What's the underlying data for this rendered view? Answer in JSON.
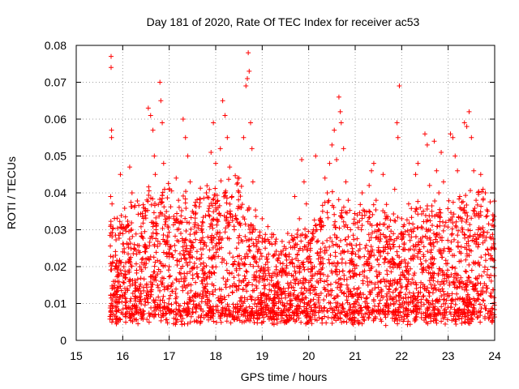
{
  "chart_data": {
    "type": "scatter",
    "title": "Day 181 of 2020, Rate Of TEC Index for receiver ac53",
    "xlabel": "GPS time / hours",
    "ylabel": "ROTI / TECUs",
    "xlim": [
      15,
      24
    ],
    "ylim": [
      0,
      0.08
    ],
    "xticks": [
      "15",
      "16",
      "17",
      "18",
      "19",
      "20",
      "21",
      "22",
      "23",
      "24"
    ],
    "yticks": [
      "0",
      "0.01",
      "0.02",
      "0.03",
      "0.04",
      "0.05",
      "0.06",
      "0.07",
      "0.08"
    ],
    "grid": true,
    "marker": "plus",
    "color": "#ff0000",
    "series": [
      {
        "name": "ROTI",
        "points": [
          [
            15.75,
            0.077
          ],
          [
            15.75,
            0.074
          ],
          [
            15.76,
            0.057
          ],
          [
            15.76,
            0.055
          ],
          [
            15.74,
            0.039
          ],
          [
            15.77,
            0.037
          ],
          [
            15.78,
            0.021
          ],
          [
            15.8,
            0.016
          ],
          [
            15.82,
            0.012
          ],
          [
            15.85,
            0.009
          ],
          [
            15.88,
            0.006
          ],
          [
            15.9,
            0.014
          ],
          [
            15.95,
            0.045
          ],
          [
            16.0,
            0.024
          ],
          [
            16.05,
            0.018
          ],
          [
            16.1,
            0.031
          ],
          [
            16.15,
            0.047
          ],
          [
            16.2,
            0.04
          ],
          [
            16.25,
            0.026
          ],
          [
            16.3,
            0.019
          ],
          [
            16.35,
            0.014
          ],
          [
            16.4,
            0.029
          ],
          [
            16.45,
            0.036
          ],
          [
            16.5,
            0.022
          ],
          [
            16.55,
            0.063
          ],
          [
            16.6,
            0.061
          ],
          [
            16.65,
            0.057
          ],
          [
            16.68,
            0.05
          ],
          [
            16.7,
            0.045
          ],
          [
            16.72,
            0.031
          ],
          [
            16.75,
            0.018
          ],
          [
            16.8,
            0.07
          ],
          [
            16.82,
            0.065
          ],
          [
            16.85,
            0.059
          ],
          [
            16.88,
            0.048
          ],
          [
            16.9,
            0.041
          ],
          [
            16.95,
            0.027
          ],
          [
            17.0,
            0.02
          ],
          [
            17.05,
            0.015
          ],
          [
            17.1,
            0.033
          ],
          [
            17.15,
            0.044
          ],
          [
            17.2,
            0.038
          ],
          [
            17.25,
            0.029
          ],
          [
            17.3,
            0.06
          ],
          [
            17.35,
            0.055
          ],
          [
            17.4,
            0.05
          ],
          [
            17.45,
            0.043
          ],
          [
            17.5,
            0.035
          ],
          [
            17.55,
            0.012
          ],
          [
            17.6,
            0.005
          ],
          [
            17.65,
            0.022
          ],
          [
            17.7,
            0.031
          ],
          [
            17.75,
            0.026
          ],
          [
            17.8,
            0.04
          ],
          [
            17.85,
            0.034
          ],
          [
            17.9,
            0.051
          ],
          [
            17.95,
            0.059
          ],
          [
            18.0,
            0.048
          ],
          [
            18.05,
            0.036
          ],
          [
            18.1,
            0.052
          ],
          [
            18.15,
            0.065
          ],
          [
            18.2,
            0.061
          ],
          [
            18.25,
            0.055
          ],
          [
            18.3,
            0.047
          ],
          [
            18.35,
            0.039
          ],
          [
            18.4,
            0.03
          ],
          [
            18.45,
            0.025
          ],
          [
            18.5,
            0.044
          ],
          [
            18.55,
            0.036
          ],
          [
            18.6,
            0.055
          ],
          [
            18.65,
            0.069
          ],
          [
            18.68,
            0.071
          ],
          [
            18.7,
            0.078
          ],
          [
            18.72,
            0.073
          ],
          [
            18.75,
            0.059
          ],
          [
            18.78,
            0.052
          ],
          [
            18.8,
            0.043
          ],
          [
            18.85,
            0.03
          ],
          [
            18.9,
            0.024
          ],
          [
            18.95,
            0.019
          ],
          [
            19.0,
            0.033
          ],
          [
            19.05,
            0.014
          ],
          [
            19.1,
            0.022
          ],
          [
            19.15,
            0.011
          ],
          [
            19.2,
            0.017
          ],
          [
            19.25,
            0.008
          ],
          [
            19.3,
            0.02
          ],
          [
            19.35,
            0.015
          ],
          [
            19.4,
            0.024
          ],
          [
            19.45,
            0.013
          ],
          [
            19.5,
            0.018
          ],
          [
            19.55,
            0.029
          ],
          [
            19.6,
            0.012
          ],
          [
            19.65,
            0.021
          ],
          [
            19.7,
            0.039
          ],
          [
            19.75,
            0.026
          ],
          [
            19.8,
            0.033
          ],
          [
            19.85,
            0.049
          ],
          [
            19.9,
            0.043
          ],
          [
            19.95,
            0.037
          ],
          [
            20.0,
            0.005
          ],
          [
            20.05,
            0.021
          ],
          [
            20.1,
            0.03
          ],
          [
            20.15,
            0.05
          ],
          [
            20.2,
            0.027
          ],
          [
            20.25,
            0.018
          ],
          [
            20.3,
            0.035
          ],
          [
            20.35,
            0.044
          ],
          [
            20.4,
            0.04
          ],
          [
            20.45,
            0.048
          ],
          [
            20.5,
            0.053
          ],
          [
            20.55,
            0.057
          ],
          [
            20.6,
            0.049
          ],
          [
            20.65,
            0.066
          ],
          [
            20.68,
            0.062
          ],
          [
            20.7,
            0.059
          ],
          [
            20.75,
            0.052
          ],
          [
            20.8,
            0.043
          ],
          [
            20.85,
            0.038
          ],
          [
            20.9,
            0.03
          ],
          [
            20.95,
            0.024
          ],
          [
            21.0,
            0.018
          ],
          [
            21.05,
            0.032
          ],
          [
            21.1,
            0.026
          ],
          [
            21.15,
            0.04
          ],
          [
            21.2,
            0.035
          ],
          [
            21.25,
            0.021
          ],
          [
            21.3,
            0.042
          ],
          [
            21.35,
            0.046
          ],
          [
            21.4,
            0.048
          ],
          [
            21.45,
            0.038
          ],
          [
            21.5,
            0.03
          ],
          [
            21.55,
            0.024
          ],
          [
            21.6,
            0.045
          ],
          [
            21.65,
            0.033
          ],
          [
            21.7,
            0.027
          ],
          [
            21.75,
            0.02
          ],
          [
            21.8,
            0.015
          ],
          [
            21.85,
            0.041
          ],
          [
            21.9,
            0.059
          ],
          [
            21.92,
            0.055
          ],
          [
            21.95,
            0.069
          ],
          [
            22.0,
            0.033
          ],
          [
            22.05,
            0.026
          ],
          [
            22.1,
            0.019
          ],
          [
            22.15,
            0.037
          ],
          [
            22.2,
            0.03
          ],
          [
            22.25,
            0.022
          ],
          [
            22.3,
            0.045
          ],
          [
            22.35,
            0.048
          ],
          [
            22.4,
            0.036
          ],
          [
            22.45,
            0.028
          ],
          [
            22.5,
            0.056
          ],
          [
            22.55,
            0.053
          ],
          [
            22.6,
            0.042
          ],
          [
            22.65,
            0.035
          ],
          [
            22.7,
            0.054
          ],
          [
            22.75,
            0.046
          ],
          [
            22.8,
            0.04
          ],
          [
            22.85,
            0.051
          ],
          [
            22.9,
            0.043
          ],
          [
            22.95,
            0.032
          ],
          [
            23.0,
            0.025
          ],
          [
            23.05,
            0.056
          ],
          [
            23.1,
            0.055
          ],
          [
            23.15,
            0.05
          ],
          [
            23.2,
            0.046
          ],
          [
            23.25,
            0.039
          ],
          [
            23.3,
            0.033
          ],
          [
            23.35,
            0.059
          ],
          [
            23.4,
            0.058
          ],
          [
            23.45,
            0.062
          ],
          [
            23.5,
            0.055
          ],
          [
            23.55,
            0.046
          ],
          [
            23.6,
            0.038
          ],
          [
            23.65,
            0.03
          ],
          [
            23.7,
            0.045
          ],
          [
            23.75,
            0.041
          ],
          [
            23.8,
            0.04
          ],
          [
            23.85,
            0.035
          ],
          [
            23.9,
            0.028
          ],
          [
            23.95,
            0.022
          ],
          [
            23.98,
            0.031
          ],
          [
            23.5,
            0.006
          ],
          [
            23.3,
            0.008
          ],
          [
            22.6,
            0.007
          ],
          [
            21.7,
            0.007
          ],
          [
            20.9,
            0.009
          ],
          [
            19.9,
            0.008
          ],
          [
            19.4,
            0.007
          ],
          [
            18.6,
            0.008
          ],
          [
            17.8,
            0.007
          ],
          [
            17.0,
            0.008
          ],
          [
            16.3,
            0.009
          ],
          [
            15.85,
            0.005
          ]
        ]
      }
    ]
  }
}
